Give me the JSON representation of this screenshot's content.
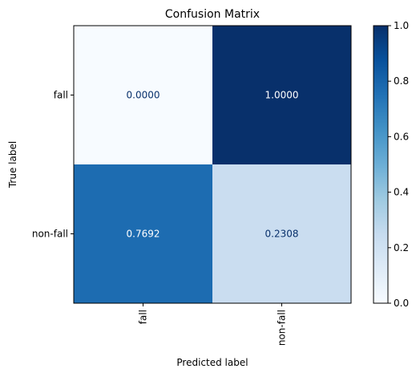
{
  "chart_data": {
    "type": "heatmap",
    "title": "Confusion Matrix",
    "xlabel": "Predicted label",
    "ylabel": "True label",
    "x_categories": [
      "fall",
      "non-fall"
    ],
    "y_categories": [
      "fall",
      "non-fall"
    ],
    "values": [
      [
        0.0,
        1.0
      ],
      [
        0.7692,
        0.2308
      ]
    ],
    "value_labels": [
      [
        "0.0000",
        "1.0000"
      ],
      [
        "0.7692",
        "0.2308"
      ]
    ],
    "colormap": "Blues",
    "colorbar": {
      "range": [
        0.0,
        1.0
      ],
      "ticks": [
        0.0,
        0.2,
        0.4,
        0.6,
        0.8,
        1.0
      ],
      "tick_labels": [
        "0.0",
        "0.2",
        "0.4",
        "0.6",
        "0.8",
        "1.0"
      ]
    },
    "x_tick_rotation": "vertical",
    "grid": false,
    "text_colors": {
      "on_light": "#08306b",
      "on_dark": "#ffffff"
    }
  }
}
